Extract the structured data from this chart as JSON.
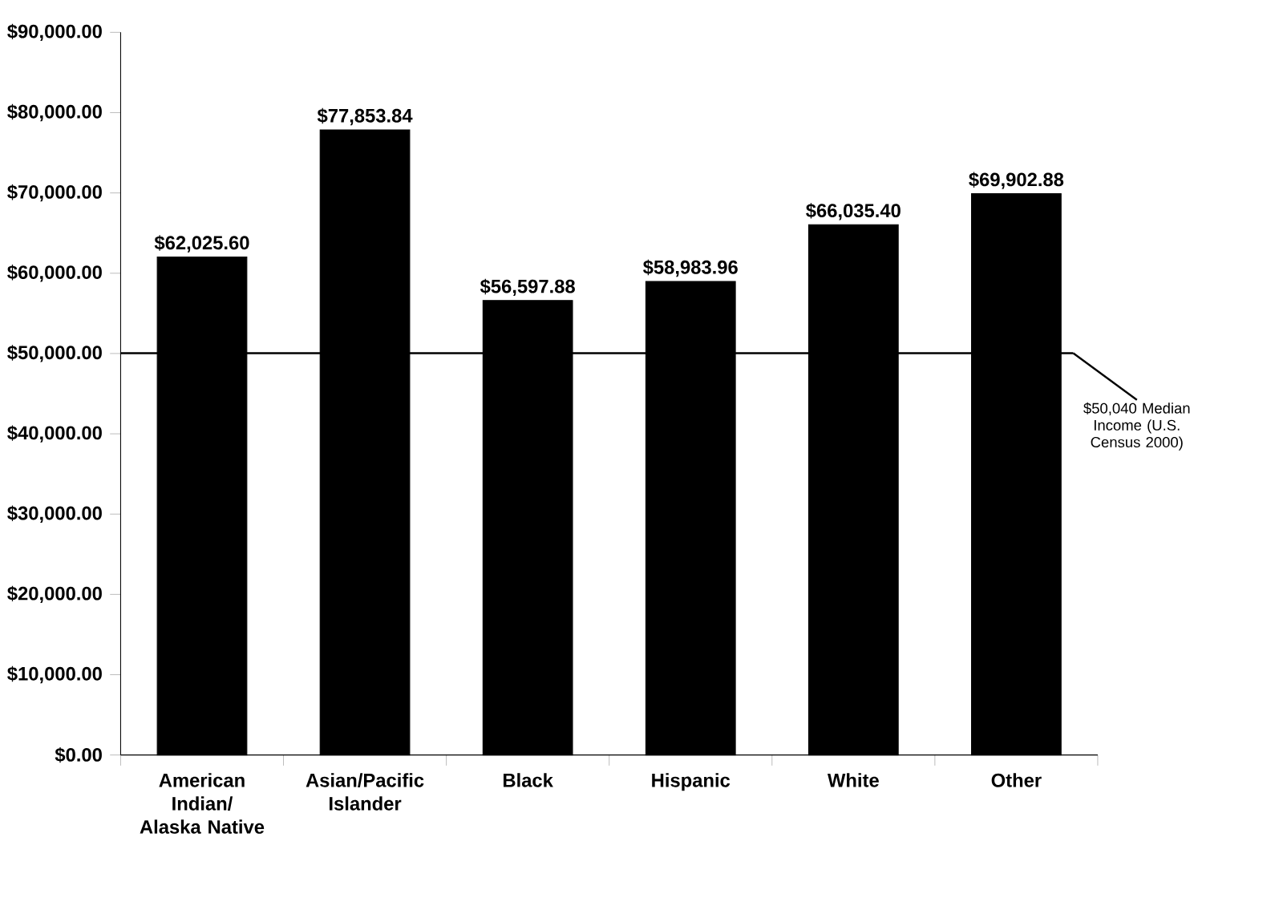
{
  "chart_data": {
    "type": "bar",
    "categories": [
      "American Indian/ Alaska Native",
      "Asian/Pacific Islander",
      "Black",
      "Hispanic",
      "White",
      "Other"
    ],
    "values": [
      62025.6,
      77853.84,
      56597.88,
      58983.96,
      66035.4,
      69902.88
    ],
    "value_labels": [
      "$62,025.60",
      "$77,853.84",
      "$56,597.88",
      "$58,983.96",
      "$66,035.40",
      "$69,902.88"
    ],
    "color": "#000000",
    "ylim": [
      0,
      90000
    ],
    "yticks": [
      {
        "value": 0,
        "label": "$0.00"
      },
      {
        "value": 10000,
        "label": "$10,000.00"
      },
      {
        "value": 20000,
        "label": "$20,000.00"
      },
      {
        "value": 30000,
        "label": "$30,000.00"
      },
      {
        "value": 40000,
        "label": "$40,000.00"
      },
      {
        "value": 50000,
        "label": "$50,000.00"
      },
      {
        "value": 60000,
        "label": "$60,000.00"
      },
      {
        "value": 70000,
        "label": "$70,000.00"
      },
      {
        "value": 80000,
        "label": "$80,000.00"
      },
      {
        "value": 90000,
        "label": "$90,000.00"
      }
    ],
    "ref_lines": [
      {
        "axis": "y",
        "value": 50040,
        "label": "$50,040 Median Income (U.S. Census 2000)",
        "color": "#000000"
      }
    ]
  }
}
